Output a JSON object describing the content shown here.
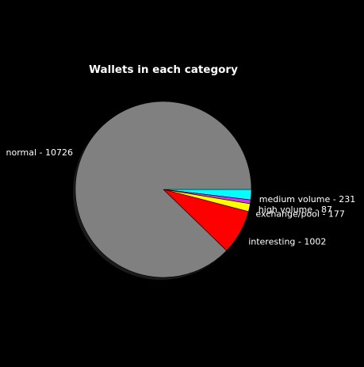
{
  "chart_data": {
    "type": "pie",
    "title": "Wallets in each category",
    "categories": [
      "medium volume",
      "high volume",
      "exchange/pool",
      "interesting",
      "normal"
    ],
    "values": [
      231,
      87,
      177,
      1002,
      10726
    ],
    "labels": [
      "medium volume - 231",
      "high volume - 87",
      "exchange/pool - 177",
      "interesting - 1002",
      "normal - 10726"
    ],
    "colors": [
      "#00ffff",
      "#cc33ff",
      "#ffff00",
      "#ff0000",
      "#808080"
    ],
    "start_angle": "3 o'clock",
    "direction": "clockwise",
    "shadow": true,
    "background": "#000000",
    "text_color": "#ffffff"
  }
}
